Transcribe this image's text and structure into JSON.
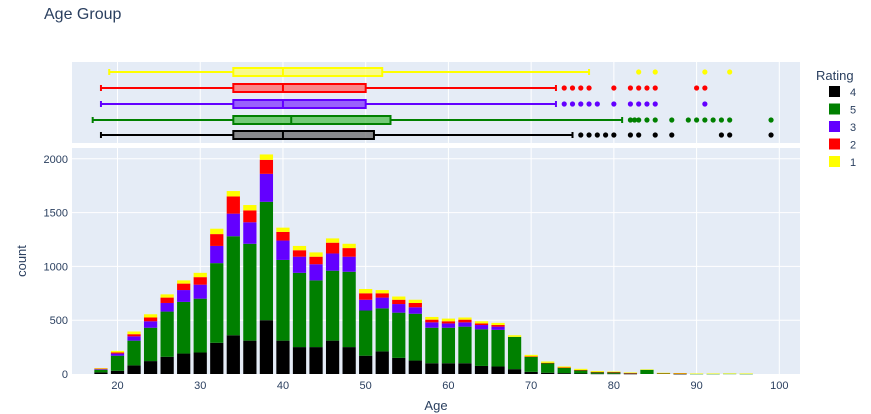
{
  "chart_data": {
    "type": "bar",
    "title": "Age Group",
    "xlabel": "Age",
    "ylabel": "count",
    "barmode": "stack",
    "xlim": [
      14.5,
      102.5
    ],
    "ylim": [
      0,
      2100
    ],
    "x_ticks": [
      20,
      30,
      40,
      50,
      60,
      70,
      80,
      90,
      100
    ],
    "y_ticks": [
      0,
      500,
      1000,
      1500,
      2000
    ],
    "grid": true,
    "legend": {
      "title": "Rating",
      "placement": "right"
    },
    "bin_start": 18,
    "bin_width": 2,
    "series": [
      {
        "name": "4",
        "color": "#000000",
        "values": [
          15,
          30,
          80,
          120,
          160,
          190,
          200,
          290,
          360,
          310,
          500,
          310,
          250,
          250,
          310,
          250,
          170,
          210,
          150,
          125,
          100,
          100,
          100,
          75,
          70,
          45,
          20,
          12,
          8,
          5,
          3,
          3,
          2,
          0,
          0,
          1,
          0,
          0,
          0,
          0,
          0,
          0
        ]
      },
      {
        "name": "5",
        "color": "#008000",
        "values": [
          25,
          140,
          230,
          310,
          420,
          480,
          500,
          740,
          920,
          900,
          1100,
          750,
          690,
          620,
          650,
          700,
          420,
          400,
          420,
          435,
          330,
          330,
          340,
          340,
          340,
          300,
          140,
          90,
          50,
          30,
          14,
          12,
          6,
          40,
          5,
          4,
          2,
          2,
          3,
          2,
          0,
          0
        ]
      },
      {
        "name": "3",
        "color": "#6300ff",
        "values": [
          5,
          20,
          40,
          60,
          80,
          110,
          130,
          160,
          210,
          200,
          260,
          180,
          150,
          150,
          160,
          140,
          100,
          100,
          80,
          60,
          50,
          40,
          40,
          40,
          30,
          0,
          0,
          0,
          0,
          0,
          0,
          0,
          0,
          0,
          0,
          0,
          0,
          0,
          0,
          0,
          0,
          0
        ]
      },
      {
        "name": "2",
        "color": "#ff0000",
        "values": [
          5,
          10,
          20,
          35,
          50,
          60,
          70,
          110,
          160,
          110,
          130,
          80,
          60,
          70,
          100,
          80,
          60,
          40,
          40,
          40,
          25,
          20,
          25,
          15,
          15,
          0,
          3,
          2,
          2,
          3,
          3,
          3,
          2,
          0,
          3,
          1,
          0,
          0,
          0,
          0,
          0,
          0
        ]
      },
      {
        "name": "1",
        "color": "#ffff00",
        "values": [
          5,
          15,
          25,
          30,
          30,
          30,
          40,
          50,
          50,
          50,
          50,
          40,
          40,
          40,
          40,
          40,
          40,
          30,
          30,
          30,
          25,
          25,
          20,
          20,
          20,
          15,
          15,
          12,
          10,
          10,
          8,
          5,
          5,
          3,
          3,
          3,
          3,
          3,
          3,
          3,
          0,
          0
        ]
      }
    ],
    "boxplots": [
      {
        "name": "1",
        "color": "#ffff00",
        "whisker_low": 19,
        "q1": 34,
        "median": 40,
        "q3": 52,
        "whisker_high": 77,
        "outliers": [
          83,
          85,
          91,
          94
        ]
      },
      {
        "name": "2",
        "color": "#ff0000",
        "whisker_low": 18,
        "q1": 34,
        "median": 40,
        "q3": 50,
        "whisker_high": 73,
        "outliers": [
          74,
          75,
          76,
          77,
          80,
          82,
          83,
          84,
          85,
          90,
          91
        ]
      },
      {
        "name": "3",
        "color": "#6300ff",
        "whisker_low": 18,
        "q1": 34,
        "median": 40,
        "q3": 50,
        "whisker_high": 73,
        "outliers": [
          74,
          75,
          76,
          77,
          78,
          80,
          82,
          83,
          84,
          85,
          91
        ]
      },
      {
        "name": "5",
        "color": "#008000",
        "whisker_low": 17,
        "q1": 34,
        "median": 41,
        "q3": 53,
        "whisker_high": 81,
        "outliers": [
          82,
          82.5,
          83,
          84,
          85,
          87,
          89,
          90,
          91,
          92,
          93,
          94,
          99
        ]
      },
      {
        "name": "4",
        "color": "#000000",
        "whisker_low": 18,
        "q1": 34,
        "median": 40,
        "q3": 51,
        "whisker_high": 75,
        "outliers": [
          76,
          77,
          78,
          79,
          80,
          82,
          83,
          85,
          87,
          93,
          94,
          99
        ]
      }
    ]
  }
}
